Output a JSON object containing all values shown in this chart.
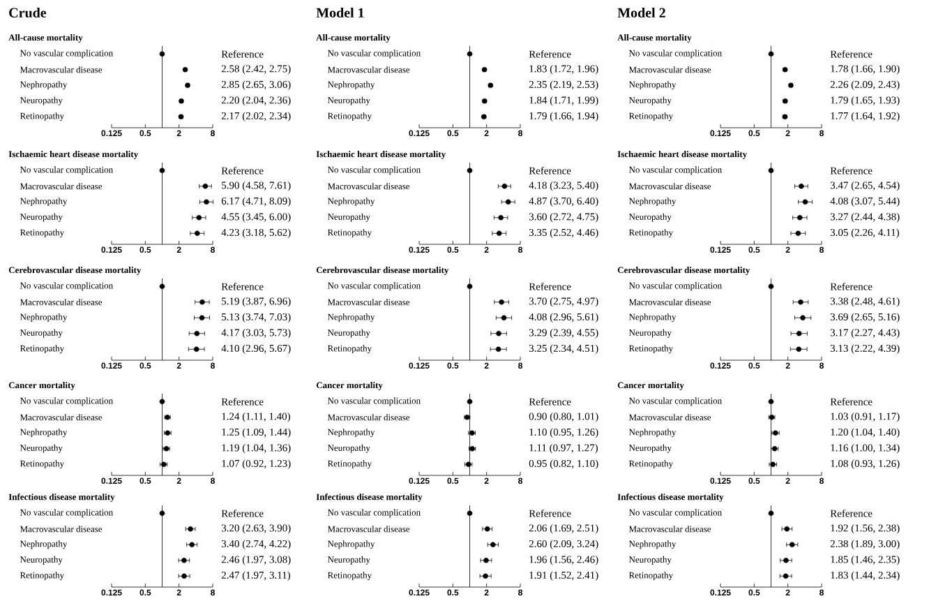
{
  "chart_data": [
    {
      "type": "scatter",
      "title": "Crude",
      "subtitle": "All-cause mortality",
      "orientation": "horizontal",
      "log": "x",
      "marker": "circle",
      "color": "#000000",
      "xlim": [
        0.125,
        8
      ],
      "xticks": [
        0.125,
        0.5,
        2,
        8
      ],
      "ref_lines": [
        {
          "axis": "x",
          "value": 1
        }
      ],
      "categories": [
        "No vascular complication",
        "Macrovascular disease",
        "Nephropathy",
        "Neuropathy",
        "Retinopathy"
      ],
      "values": [
        1,
        2.58,
        2.85,
        2.2,
        2.17
      ],
      "errors": [
        null,
        [
          2.42,
          2.75
        ],
        [
          2.65,
          3.06
        ],
        [
          2.04,
          2.36
        ],
        [
          2.02,
          2.34
        ]
      ],
      "annotations": [
        "Reference",
        "2.58 (2.42, 2.75)",
        "2.85 (2.65, 3.06)",
        "2.20 (2.04, 2.36)",
        "2.17 (2.02, 2.34)"
      ]
    },
    {
      "type": "scatter",
      "title": "Model 1",
      "subtitle": "All-cause mortality",
      "orientation": "horizontal",
      "log": "x",
      "marker": "circle",
      "color": "#000000",
      "xlim": [
        0.125,
        8
      ],
      "xticks": [
        0.125,
        0.5,
        2,
        8
      ],
      "ref_lines": [
        {
          "axis": "x",
          "value": 1
        }
      ],
      "categories": [
        "No vascular complication",
        "Macrovascular disease",
        "Nephropathy",
        "Neuropathy",
        "Retinopathy"
      ],
      "values": [
        1,
        1.83,
        2.35,
        1.84,
        1.79
      ],
      "errors": [
        null,
        [
          1.72,
          1.96
        ],
        [
          2.19,
          2.53
        ],
        [
          1.71,
          1.99
        ],
        [
          1.66,
          1.94
        ]
      ],
      "annotations": [
        "Reference",
        "1.83 (1.72, 1.96)",
        "2.35 (2.19, 2.53)",
        "1.84 (1.71, 1.99)",
        "1.79 (1.66, 1.94)"
      ]
    },
    {
      "type": "scatter",
      "title": "Model 2",
      "subtitle": "All-cause mortality",
      "orientation": "horizontal",
      "log": "x",
      "marker": "circle",
      "color": "#000000",
      "xlim": [
        0.125,
        8
      ],
      "xticks": [
        0.125,
        0.5,
        2,
        8
      ],
      "ref_lines": [
        {
          "axis": "x",
          "value": 1
        }
      ],
      "categories": [
        "No vascular complication",
        "Macrovascular disease",
        "Nephropathy",
        "Neuropathy",
        "Retinopathy"
      ],
      "values": [
        1,
        1.78,
        2.26,
        1.79,
        1.77
      ],
      "errors": [
        null,
        [
          1.66,
          1.9
        ],
        [
          2.09,
          2.43
        ],
        [
          1.65,
          1.93
        ],
        [
          1.64,
          1.92
        ]
      ],
      "annotations": [
        "Reference",
        "1.78 (1.66, 1.90)",
        "2.26 (2.09, 2.43)",
        "1.79 (1.65, 1.93)",
        "1.77 (1.64, 1.92)"
      ]
    },
    {
      "type": "scatter",
      "title": "Ischaemic heart disease mortality",
      "orientation": "horizontal",
      "log": "x",
      "marker": "circle",
      "color": "#000000",
      "xlim": [
        0.125,
        8
      ],
      "xticks": [
        0.125,
        0.5,
        2,
        8
      ],
      "ref_lines": [
        {
          "axis": "x",
          "value": 1
        }
      ],
      "categories": [
        "No vascular complication",
        "Macrovascular disease",
        "Nephropathy",
        "Neuropathy",
        "Retinopathy"
      ],
      "values": [
        1,
        5.9,
        6.17,
        4.55,
        4.23
      ],
      "errors": [
        null,
        [
          4.58,
          7.61
        ],
        [
          4.71,
          8.09
        ],
        [
          3.45,
          6.0
        ],
        [
          3.18,
          5.62
        ]
      ],
      "annotations": [
        "Reference",
        "5.90 (4.58, 7.61)",
        "6.17 (4.71, 8.09)",
        "4.55 (3.45, 6.00)",
        "4.23 (3.18, 5.62)"
      ]
    },
    {
      "type": "scatter",
      "title": "Ischaemic heart disease mortality",
      "orientation": "horizontal",
      "log": "x",
      "marker": "circle",
      "color": "#000000",
      "xlim": [
        0.125,
        8
      ],
      "xticks": [
        0.125,
        0.5,
        2,
        8
      ],
      "ref_lines": [
        {
          "axis": "x",
          "value": 1
        }
      ],
      "categories": [
        "No vascular complication",
        "Macrovascular disease",
        "Nephropathy",
        "Neuropathy",
        "Retinopathy"
      ],
      "values": [
        1,
        4.18,
        4.87,
        3.6,
        3.35
      ],
      "errors": [
        null,
        [
          3.23,
          5.4
        ],
        [
          3.7,
          6.4
        ],
        [
          2.72,
          4.75
        ],
        [
          2.52,
          4.46
        ]
      ],
      "annotations": [
        "Reference",
        "4.18 (3.23, 5.40)",
        "4.87 (3.70, 6.40)",
        "3.60 (2.72, 4.75)",
        "3.35 (2.52, 4.46)"
      ]
    },
    {
      "type": "scatter",
      "title": "Ischaemic heart disease mortality",
      "orientation": "horizontal",
      "log": "x",
      "marker": "circle",
      "color": "#000000",
      "xlim": [
        0.125,
        8
      ],
      "xticks": [
        0.125,
        0.5,
        2,
        8
      ],
      "ref_lines": [
        {
          "axis": "x",
          "value": 1
        }
      ],
      "categories": [
        "No vascular complication",
        "Macrovascular disease",
        "Nephropathy",
        "Neuropathy",
        "Retinopathy"
      ],
      "values": [
        1,
        3.47,
        4.08,
        3.27,
        3.05
      ],
      "errors": [
        null,
        [
          2.65,
          4.54
        ],
        [
          3.07,
          5.44
        ],
        [
          2.44,
          4.38
        ],
        [
          2.26,
          4.11
        ]
      ],
      "annotations": [
        "Reference",
        "3.47 (2.65, 4.54)",
        "4.08 (3.07, 5.44)",
        "3.27 (2.44, 4.38)",
        "3.05 (2.26, 4.11)"
      ]
    },
    {
      "type": "scatter",
      "title": "Cerebrovascular disease mortality",
      "orientation": "horizontal",
      "log": "x",
      "marker": "circle",
      "color": "#000000",
      "xlim": [
        0.125,
        8
      ],
      "xticks": [
        0.125,
        0.5,
        2,
        8
      ],
      "ref_lines": [
        {
          "axis": "x",
          "value": 1
        }
      ],
      "categories": [
        "No vascular complication",
        "Macrovascular disease",
        "Nephropathy",
        "Neuropathy",
        "Retinopathy"
      ],
      "values": [
        1,
        5.19,
        5.13,
        4.17,
        4.1
      ],
      "errors": [
        null,
        [
          3.87,
          6.96
        ],
        [
          3.74,
          7.03
        ],
        [
          3.03,
          5.73
        ],
        [
          2.96,
          5.67
        ]
      ],
      "annotations": [
        "Reference",
        "5.19 (3.87, 6.96)",
        "5.13 (3.74, 7.03)",
        "4.17 (3.03, 5.73)",
        "4.10 (2.96, 5.67)"
      ]
    },
    {
      "type": "scatter",
      "title": "Cerebrovascular disease mortality",
      "orientation": "horizontal",
      "log": "x",
      "marker": "circle",
      "color": "#000000",
      "xlim": [
        0.125,
        8
      ],
      "xticks": [
        0.125,
        0.5,
        2,
        8
      ],
      "ref_lines": [
        {
          "axis": "x",
          "value": 1
        }
      ],
      "categories": [
        "No vascular complication",
        "Macrovascular disease",
        "Nephropathy",
        "Neuropathy",
        "Retinopathy"
      ],
      "values": [
        1,
        3.7,
        4.08,
        3.29,
        3.25
      ],
      "errors": [
        null,
        [
          2.75,
          4.97
        ],
        [
          2.96,
          5.61
        ],
        [
          2.39,
          4.55
        ],
        [
          2.34,
          4.51
        ]
      ],
      "annotations": [
        "Reference",
        "3.70 (2.75, 4.97)",
        "4.08 (2.96, 5.61)",
        "3.29 (2.39, 4.55)",
        "3.25 (2.34, 4.51)"
      ]
    },
    {
      "type": "scatter",
      "title": "Cerebrovascular disease mortality",
      "orientation": "horizontal",
      "log": "x",
      "marker": "circle",
      "color": "#000000",
      "xlim": [
        0.125,
        8
      ],
      "xticks": [
        0.125,
        0.5,
        2,
        8
      ],
      "ref_lines": [
        {
          "axis": "x",
          "value": 1
        }
      ],
      "categories": [
        "No vascular complication",
        "Macrovascular disease",
        "Nephropathy",
        "Neuropathy",
        "Retinopathy"
      ],
      "values": [
        1,
        3.38,
        3.69,
        3.17,
        3.13
      ],
      "errors": [
        null,
        [
          2.48,
          4.61
        ],
        [
          2.65,
          5.16
        ],
        [
          2.27,
          4.43
        ],
        [
          2.22,
          4.39
        ]
      ],
      "annotations": [
        "Reference",
        "3.38 (2.48, 4.61)",
        "3.69 (2.65, 5.16)",
        "3.17 (2.27, 4.43)",
        "3.13 (2.22, 4.39)"
      ]
    },
    {
      "type": "scatter",
      "title": "Cancer mortality",
      "orientation": "horizontal",
      "log": "x",
      "marker": "circle",
      "color": "#000000",
      "xlim": [
        0.125,
        8
      ],
      "xticks": [
        0.125,
        0.5,
        2,
        8
      ],
      "ref_lines": [
        {
          "axis": "x",
          "value": 1
        }
      ],
      "categories": [
        "No vascular complication",
        "Macrovascular disease",
        "Nephropathy",
        "Neuropathy",
        "Retinopathy"
      ],
      "values": [
        1,
        1.24,
        1.25,
        1.19,
        1.07
      ],
      "errors": [
        null,
        [
          1.11,
          1.4
        ],
        [
          1.09,
          1.44
        ],
        [
          1.04,
          1.36
        ],
        [
          0.92,
          1.23
        ]
      ],
      "annotations": [
        "Reference",
        "1.24 (1.11, 1.40)",
        "1.25 (1.09, 1.44)",
        "1.19 (1.04, 1.36)",
        "1.07 (0.92, 1.23)"
      ]
    },
    {
      "type": "scatter",
      "title": "Cancer mortality",
      "orientation": "horizontal",
      "log": "x",
      "marker": "circle",
      "color": "#000000",
      "xlim": [
        0.125,
        8
      ],
      "xticks": [
        0.125,
        0.5,
        2,
        8
      ],
      "ref_lines": [
        {
          "axis": "x",
          "value": 1
        }
      ],
      "categories": [
        "No vascular complication",
        "Macrovascular disease",
        "Nephropathy",
        "Neuropathy",
        "Retinopathy"
      ],
      "values": [
        1,
        0.9,
        1.1,
        1.11,
        0.95
      ],
      "errors": [
        null,
        [
          0.8,
          1.01
        ],
        [
          0.95,
          1.26
        ],
        [
          0.97,
          1.27
        ],
        [
          0.82,
          1.1
        ]
      ],
      "annotations": [
        "Reference",
        "0.90 (0.80, 1.01)",
        "1.10 (0.95, 1.26)",
        "1.11 (0.97, 1.27)",
        "0.95 (0.82, 1.10)"
      ]
    },
    {
      "type": "scatter",
      "title": "Cancer mortality",
      "orientation": "horizontal",
      "log": "x",
      "marker": "circle",
      "color": "#000000",
      "xlim": [
        0.125,
        8
      ],
      "xticks": [
        0.125,
        0.5,
        2,
        8
      ],
      "ref_lines": [
        {
          "axis": "x",
          "value": 1
        }
      ],
      "categories": [
        "No vascular complication",
        "Macrovascular disease",
        "Nephropathy",
        "Neuropathy",
        "Retinopathy"
      ],
      "values": [
        1,
        1.03,
        1.2,
        1.16,
        1.08
      ],
      "errors": [
        null,
        [
          0.91,
          1.17
        ],
        [
          1.04,
          1.4
        ],
        [
          1.0,
          1.34
        ],
        [
          0.93,
          1.26
        ]
      ],
      "annotations": [
        "Reference",
        "1.03 (0.91, 1.17)",
        "1.20 (1.04, 1.40)",
        "1.16 (1.00, 1.34)",
        "1.08 (0.93, 1.26)"
      ]
    },
    {
      "type": "scatter",
      "title": "Infectious disease mortality",
      "orientation": "horizontal",
      "log": "x",
      "marker": "circle",
      "color": "#000000",
      "xlim": [
        0.125,
        8
      ],
      "xticks": [
        0.125,
        0.5,
        2,
        8
      ],
      "ref_lines": [
        {
          "axis": "x",
          "value": 1
        }
      ],
      "categories": [
        "No vascular complication",
        "Macrovascular disease",
        "Nephropathy",
        "Neuropathy",
        "Retinopathy"
      ],
      "values": [
        1,
        3.2,
        3.4,
        2.46,
        2.47
      ],
      "errors": [
        null,
        [
          2.63,
          3.9
        ],
        [
          2.74,
          4.22
        ],
        [
          1.97,
          3.08
        ],
        [
          1.97,
          3.11
        ]
      ],
      "annotations": [
        "Reference",
        "3.20 (2.63, 3.90)",
        "3.40 (2.74, 4.22)",
        "2.46 (1.97, 3.08)",
        "2.47 (1.97, 3.11)"
      ]
    },
    {
      "type": "scatter",
      "title": "Infectious disease mortality",
      "orientation": "horizontal",
      "log": "x",
      "marker": "circle",
      "color": "#000000",
      "xlim": [
        0.125,
        8
      ],
      "xticks": [
        0.125,
        0.5,
        2,
        8
      ],
      "ref_lines": [
        {
          "axis": "x",
          "value": 1
        }
      ],
      "categories": [
        "No vascular complication",
        "Macrovascular disease",
        "Nephropathy",
        "Neuropathy",
        "Retinopathy"
      ],
      "values": [
        1,
        2.06,
        2.6,
        1.96,
        1.91
      ],
      "errors": [
        null,
        [
          1.69,
          2.51
        ],
        [
          2.09,
          3.24
        ],
        [
          1.56,
          2.46
        ],
        [
          1.52,
          2.41
        ]
      ],
      "annotations": [
        "Reference",
        "2.06 (1.69, 2.51)",
        "2.60 (2.09, 3.24)",
        "1.96 (1.56, 2.46)",
        "1.91 (1.52, 2.41)"
      ]
    },
    {
      "type": "scatter",
      "title": "Infectious disease mortality",
      "orientation": "horizontal",
      "log": "x",
      "marker": "circle",
      "color": "#000000",
      "xlim": [
        0.125,
        8
      ],
      "xticks": [
        0.125,
        0.5,
        2,
        8
      ],
      "ref_lines": [
        {
          "axis": "x",
          "value": 1
        }
      ],
      "categories": [
        "No vascular complication",
        "Macrovascular disease",
        "Nephropathy",
        "Neuropathy",
        "Retinopathy"
      ],
      "values": [
        1,
        1.92,
        2.38,
        1.85,
        1.83
      ],
      "errors": [
        null,
        [
          1.56,
          2.38
        ],
        [
          1.89,
          3.0
        ],
        [
          1.46,
          2.35
        ],
        [
          1.44,
          2.34
        ]
      ],
      "annotations": [
        "Reference",
        "1.92 (1.56, 2.38)",
        "2.38 (1.89, 3.00)",
        "1.85 (1.46, 2.35)",
        "1.83 (1.44, 2.34)"
      ]
    }
  ]
}
